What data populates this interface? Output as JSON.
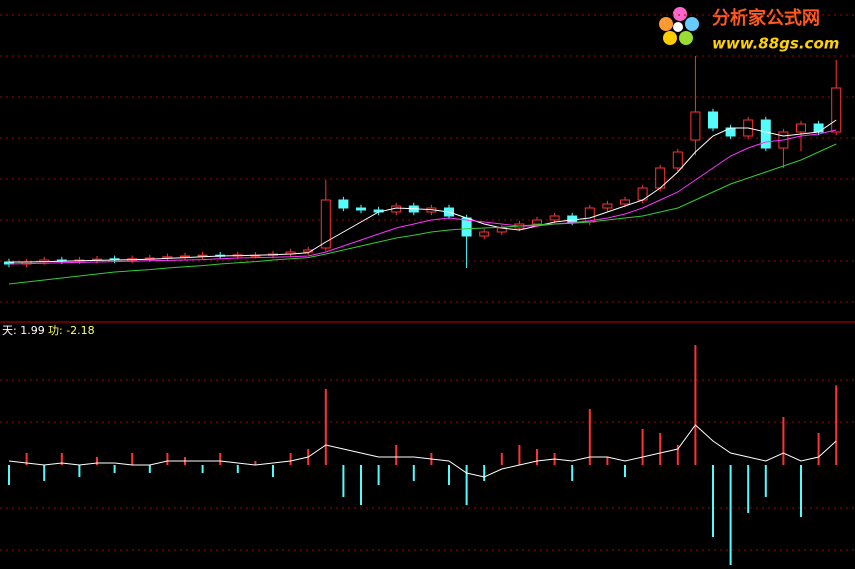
{
  "chart_data": [
    {
      "type": "candlestick",
      "ylim": [
        0,
        80
      ],
      "up_color": "#ff3232",
      "down_color": "#54fcfc",
      "open": [
        14.5,
        14,
        14.6,
        15,
        14.8,
        15,
        15.3,
        15,
        15.3,
        15.5,
        15.8,
        16,
        16.2,
        16,
        16.2,
        16.2,
        16.5,
        17,
        18,
        30,
        28,
        27.5,
        27,
        28.5,
        27,
        28,
        25.5,
        21,
        22,
        23,
        24,
        25,
        26,
        24.5,
        28,
        29,
        30,
        33,
        38,
        45,
        52,
        48,
        46,
        50,
        43,
        47,
        49,
        47
      ],
      "close": [
        14,
        14.5,
        15,
        14.8,
        15,
        15.2,
        15,
        15.3,
        15.5,
        15.8,
        16,
        16.2,
        16,
        16.3,
        16.2,
        16.5,
        17,
        17.5,
        30,
        28,
        27.5,
        27,
        28.5,
        27,
        28,
        26,
        21,
        22,
        23,
        24,
        25,
        26,
        24.5,
        28,
        29,
        30,
        33,
        38,
        42,
        52,
        48,
        46,
        50,
        43,
        47,
        49,
        47,
        58
      ],
      "high": [
        15.3,
        15.3,
        15.8,
        15.8,
        15.8,
        16,
        16.1,
        16.1,
        16.3,
        16.6,
        16.8,
        17,
        17,
        17.1,
        17,
        17.3,
        17.8,
        18.3,
        35,
        30.8,
        28.8,
        28.3,
        29.3,
        29.3,
        28.8,
        28.8,
        26.3,
        22.8,
        23.8,
        24.8,
        25.8,
        26.8,
        26.8,
        28.8,
        29.8,
        30.8,
        33.8,
        38.8,
        42.8,
        66,
        52.8,
        48.8,
        50.8,
        50.8,
        47.8,
        49.8,
        49.8,
        65
      ],
      "low": [
        13.2,
        13.2,
        13.8,
        14,
        14,
        14.2,
        14.2,
        14.2,
        14.5,
        14.7,
        15,
        15.2,
        15.2,
        15.2,
        15.4,
        15.4,
        15.7,
        16.2,
        17.2,
        27.2,
        26.7,
        26.2,
        26.2,
        26.2,
        26.2,
        25.2,
        13,
        20.2,
        21.2,
        22.2,
        23.2,
        24.2,
        23.7,
        23.7,
        27.2,
        28.2,
        29.2,
        32.2,
        37.2,
        41.2,
        47.2,
        45.2,
        45.2,
        42.2,
        38,
        42.2,
        46.2,
        46.2
      ],
      "series": [
        {
          "color": "#ffffff",
          "values": [
            14.5,
            14.5,
            14.6,
            14.7,
            14.8,
            14.9,
            15,
            15.1,
            15.2,
            15.4,
            15.6,
            15.8,
            16,
            16.1,
            16.2,
            16.3,
            16.5,
            16.8,
            19.5,
            22,
            24.5,
            27,
            28,
            27.8,
            27.6,
            27,
            25.5,
            24,
            23,
            22.5,
            23.5,
            24.5,
            25,
            25.5,
            27,
            28.5,
            30,
            33,
            37,
            42,
            46,
            48,
            48,
            47,
            46,
            46.5,
            47,
            50
          ]
        },
        {
          "color": "#ff33ff",
          "values": [
            14,
            14.1,
            14.2,
            14.3,
            14.4,
            14.5,
            14.6,
            14.7,
            14.8,
            14.9,
            15,
            15.1,
            15.3,
            15.5,
            15.6,
            15.7,
            15.8,
            16,
            17,
            18.5,
            20,
            21.5,
            23,
            24,
            25,
            25.5,
            25,
            24.5,
            24,
            23.5,
            23.5,
            24,
            24.3,
            24.8,
            25.5,
            26.5,
            28,
            30,
            32,
            35,
            38,
            41,
            43,
            44.5,
            45,
            46,
            46.5,
            47.5
          ]
        },
        {
          "color": "#33cc33",
          "values": [
            9,
            9.5,
            10,
            10.5,
            11,
            11.5,
            12,
            12.3,
            12.6,
            13,
            13.3,
            13.6,
            14,
            14.3,
            14.6,
            15,
            15.3,
            15.6,
            16.5,
            17.5,
            18.5,
            19.5,
            20.5,
            21.2,
            22,
            22.5,
            22.8,
            23,
            23.2,
            23.5,
            23.8,
            24,
            24.2,
            24.5,
            25,
            25.5,
            26,
            27,
            28,
            30,
            32,
            34,
            35.5,
            37,
            38.5,
            40,
            42,
            44
          ]
        }
      ]
    },
    {
      "type": "histogram-line",
      "ylim": [
        -2.6,
        3.4
      ],
      "up_color": "#ff3232",
      "down_color": "#54fcfc",
      "labels": [
        "天: 1.99",
        "功: -2.18"
      ],
      "values": [
        -0.5,
        0.3,
        -0.4,
        0.3,
        -0.3,
        0.2,
        -0.2,
        0.3,
        -0.2,
        0.3,
        0.2,
        -0.2,
        0.3,
        -0.2,
        0.1,
        -0.3,
        0.3,
        0.4,
        1.9,
        -0.8,
        -1.0,
        -0.5,
        0.5,
        -0.4,
        0.3,
        -0.5,
        -1.0,
        -0.4,
        0.3,
        0.5,
        0.4,
        0.3,
        -0.4,
        1.4,
        0.2,
        -0.3,
        0.9,
        0.8,
        0.5,
        3.0,
        -1.8,
        -2.5,
        -1.2,
        -0.8,
        1.2,
        -1.3,
        0.8,
        1.99
      ],
      "line": {
        "color": "#ffffff",
        "values": [
          0.1,
          0.05,
          0,
          0.05,
          0,
          0.05,
          0.05,
          0,
          0,
          0.1,
          0.1,
          0.1,
          0.1,
          0.05,
          0,
          0.05,
          0.1,
          0.2,
          0.5,
          0.4,
          0.3,
          0.2,
          0.2,
          0.2,
          0.15,
          0.1,
          -0.2,
          -0.3,
          -0.1,
          0,
          0.1,
          0.15,
          0.1,
          0.2,
          0.2,
          0.1,
          0.2,
          0.3,
          0.4,
          1.0,
          0.6,
          0.3,
          0.2,
          0.1,
          0.3,
          0.1,
          0.2,
          0.6
        ]
      }
    }
  ],
  "watermark": {
    "title": "分析家公式网",
    "url": "www.88gs.com"
  }
}
